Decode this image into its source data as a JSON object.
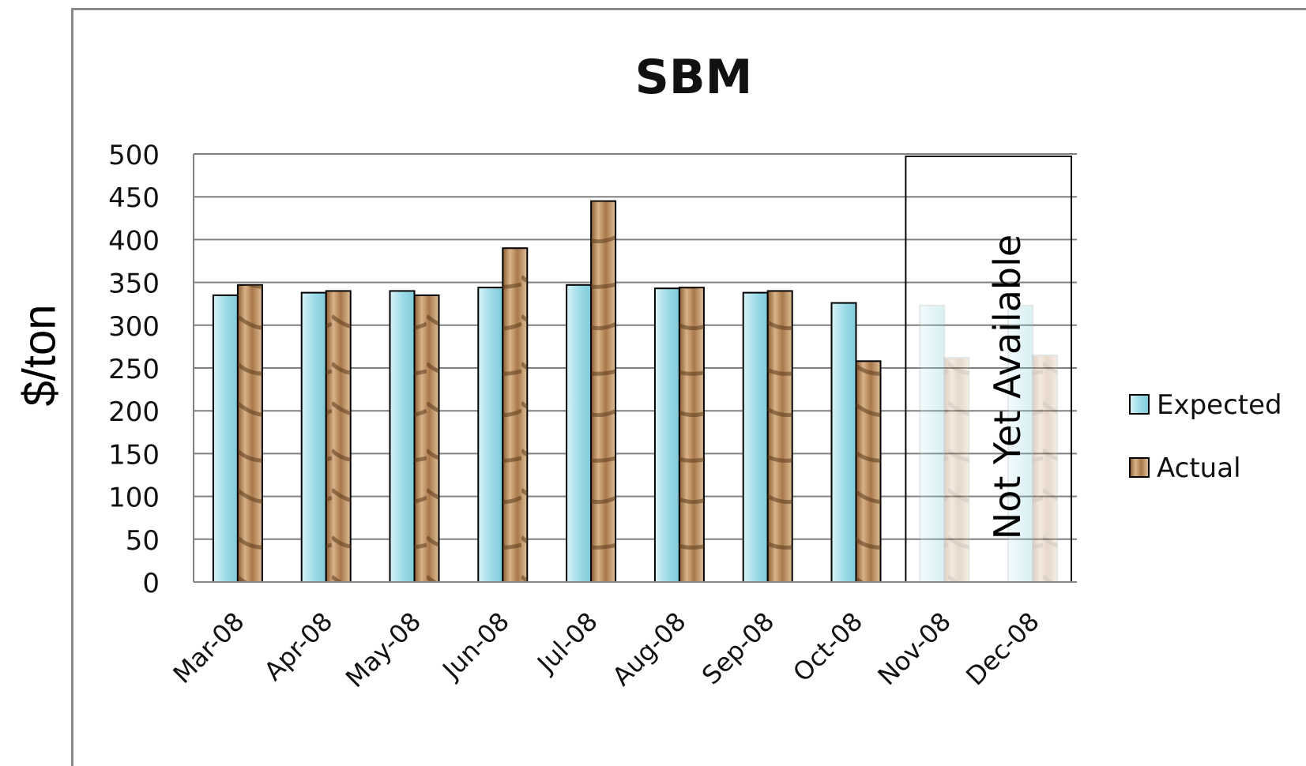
{
  "chart_data": {
    "type": "bar",
    "title": "SBM",
    "ylabel": "$/ton",
    "xlabel": "",
    "ylim": [
      0,
      500
    ],
    "yticks": [
      0,
      50,
      100,
      150,
      200,
      250,
      300,
      350,
      400,
      450,
      500
    ],
    "grid": true,
    "legend_position": "right",
    "categories": [
      "Mar-08",
      "Apr-08",
      "May-08",
      "Jun-08",
      "Jul-08",
      "Aug-08",
      "Sep-08",
      "Oct-08",
      "Nov-08",
      "Dec-08"
    ],
    "series": [
      {
        "name": "Expected",
        "color": "#aee3ec",
        "values": [
          335,
          338,
          340,
          344,
          347,
          343,
          338,
          326,
          323,
          323
        ]
      },
      {
        "name": "Actual",
        "color": "#c49a6c",
        "values": [
          347,
          340,
          335,
          390,
          445,
          344,
          340,
          258,
          262,
          265
        ]
      }
    ],
    "annotation": {
      "text": "Not Yet Available",
      "categories": [
        "Nov-08",
        "Dec-08"
      ]
    }
  }
}
